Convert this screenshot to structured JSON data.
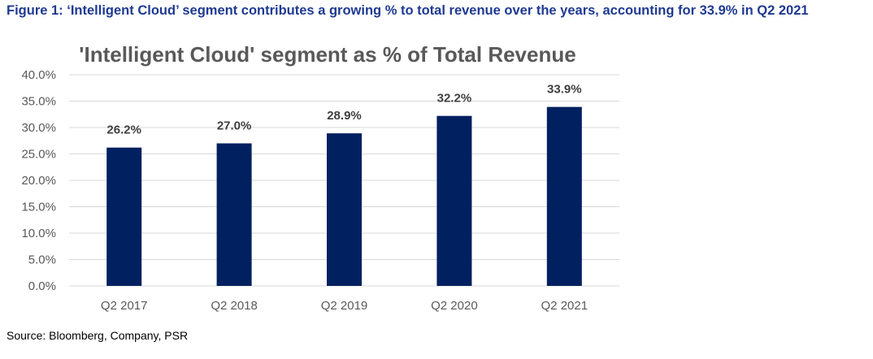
{
  "figure_caption": "Figure 1: ‘Intelligent Cloud’ segment contributes a growing % to total revenue over the years, accounting for 33.9% in Q2 2021",
  "source_note": "Source: Bloomberg, Company, PSR",
  "colors": {
    "caption": "#1f3a93",
    "bar": "#002060",
    "gridline": "#d9d9d9",
    "axis_text": "#595959"
  },
  "chart_data": {
    "type": "bar",
    "title": "'Intelligent Cloud' segment as % of Total Revenue",
    "xlabel": "",
    "ylabel": "",
    "categories": [
      "Q2 2017",
      "Q2 2018",
      "Q2 2019",
      "Q2 2020",
      "Q2 2021"
    ],
    "values": [
      26.2,
      27.0,
      28.9,
      32.2,
      33.9
    ],
    "data_labels": [
      "26.2%",
      "27.0%",
      "28.9%",
      "32.2%",
      "33.9%"
    ],
    "ylim": [
      0,
      40
    ],
    "y_ticks": [
      "0.0%",
      "5.0%",
      "10.0%",
      "15.0%",
      "20.0%",
      "25.0%",
      "30.0%",
      "35.0%",
      "40.0%"
    ],
    "y_tick_values": [
      0,
      5,
      10,
      15,
      20,
      25,
      30,
      35,
      40
    ],
    "grid": true,
    "legend": "none"
  }
}
